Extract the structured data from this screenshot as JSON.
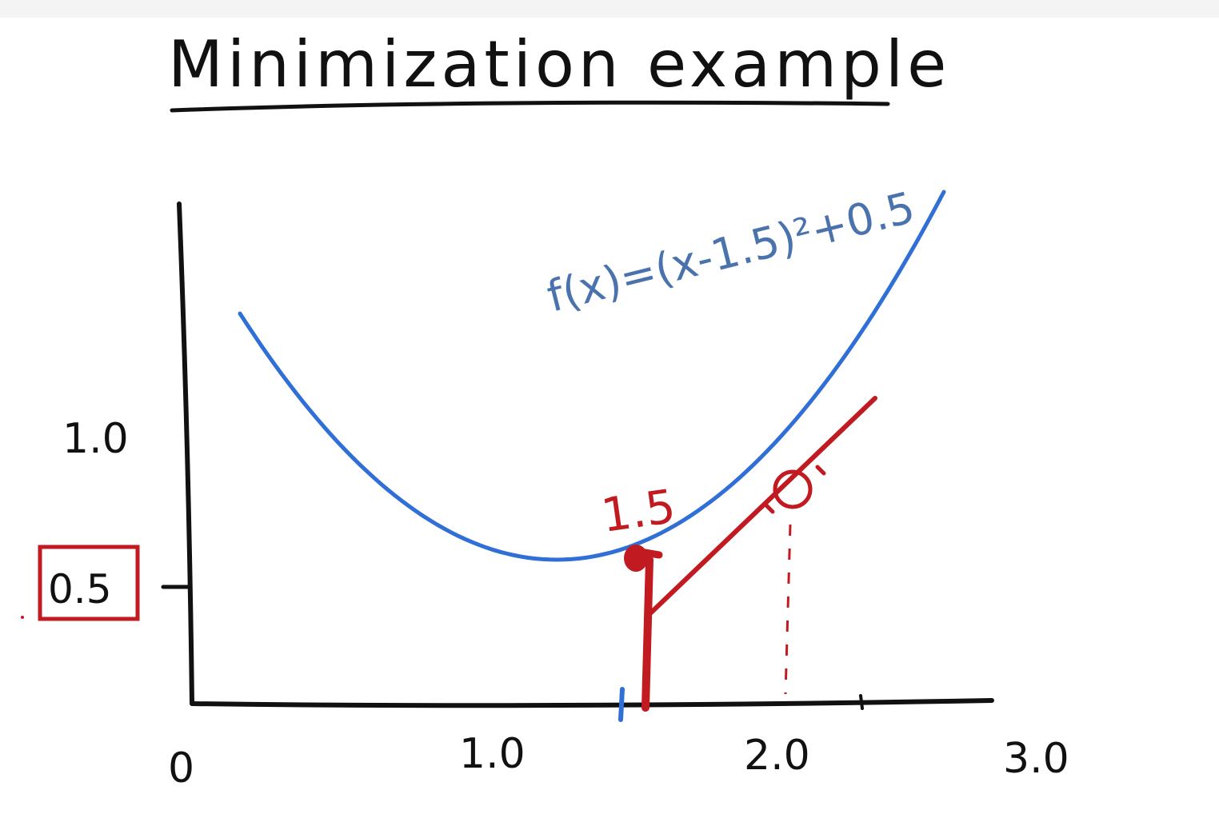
{
  "title": "Minimization example",
  "formula": "f(x)=(x-1.5)²+0.5",
  "x_tick_labels": [
    "0",
    "1.0",
    "2.0",
    "3.0"
  ],
  "y_tick_labels": [
    "1.0",
    "0.5"
  ],
  "min_x_label": "1.5",
  "colors": {
    "curve": "#2f6fd6",
    "annotation": "#c11a20",
    "axes": "#111111",
    "formula": "#4a73ad"
  },
  "chart_data": {
    "type": "line",
    "title": "Minimization example",
    "series": [
      {
        "name": "f(x)=(x-1.5)²+0.5",
        "function": "(x-1.5)^2+0.5",
        "x": [
          0.6,
          0.8,
          1.0,
          1.2,
          1.4,
          1.5,
          1.6,
          1.8,
          2.0,
          2.2,
          2.4,
          2.6
        ],
        "y": [
          1.31,
          0.99,
          0.75,
          0.59,
          0.51,
          0.5,
          0.51,
          0.59,
          0.75,
          0.99,
          1.31,
          1.71
        ]
      }
    ],
    "minimum": {
      "x": 1.5,
      "y": 0.5
    },
    "xlim": [
      0,
      3.0
    ],
    "ylim": [
      0,
      1.5
    ],
    "grid": false
  }
}
